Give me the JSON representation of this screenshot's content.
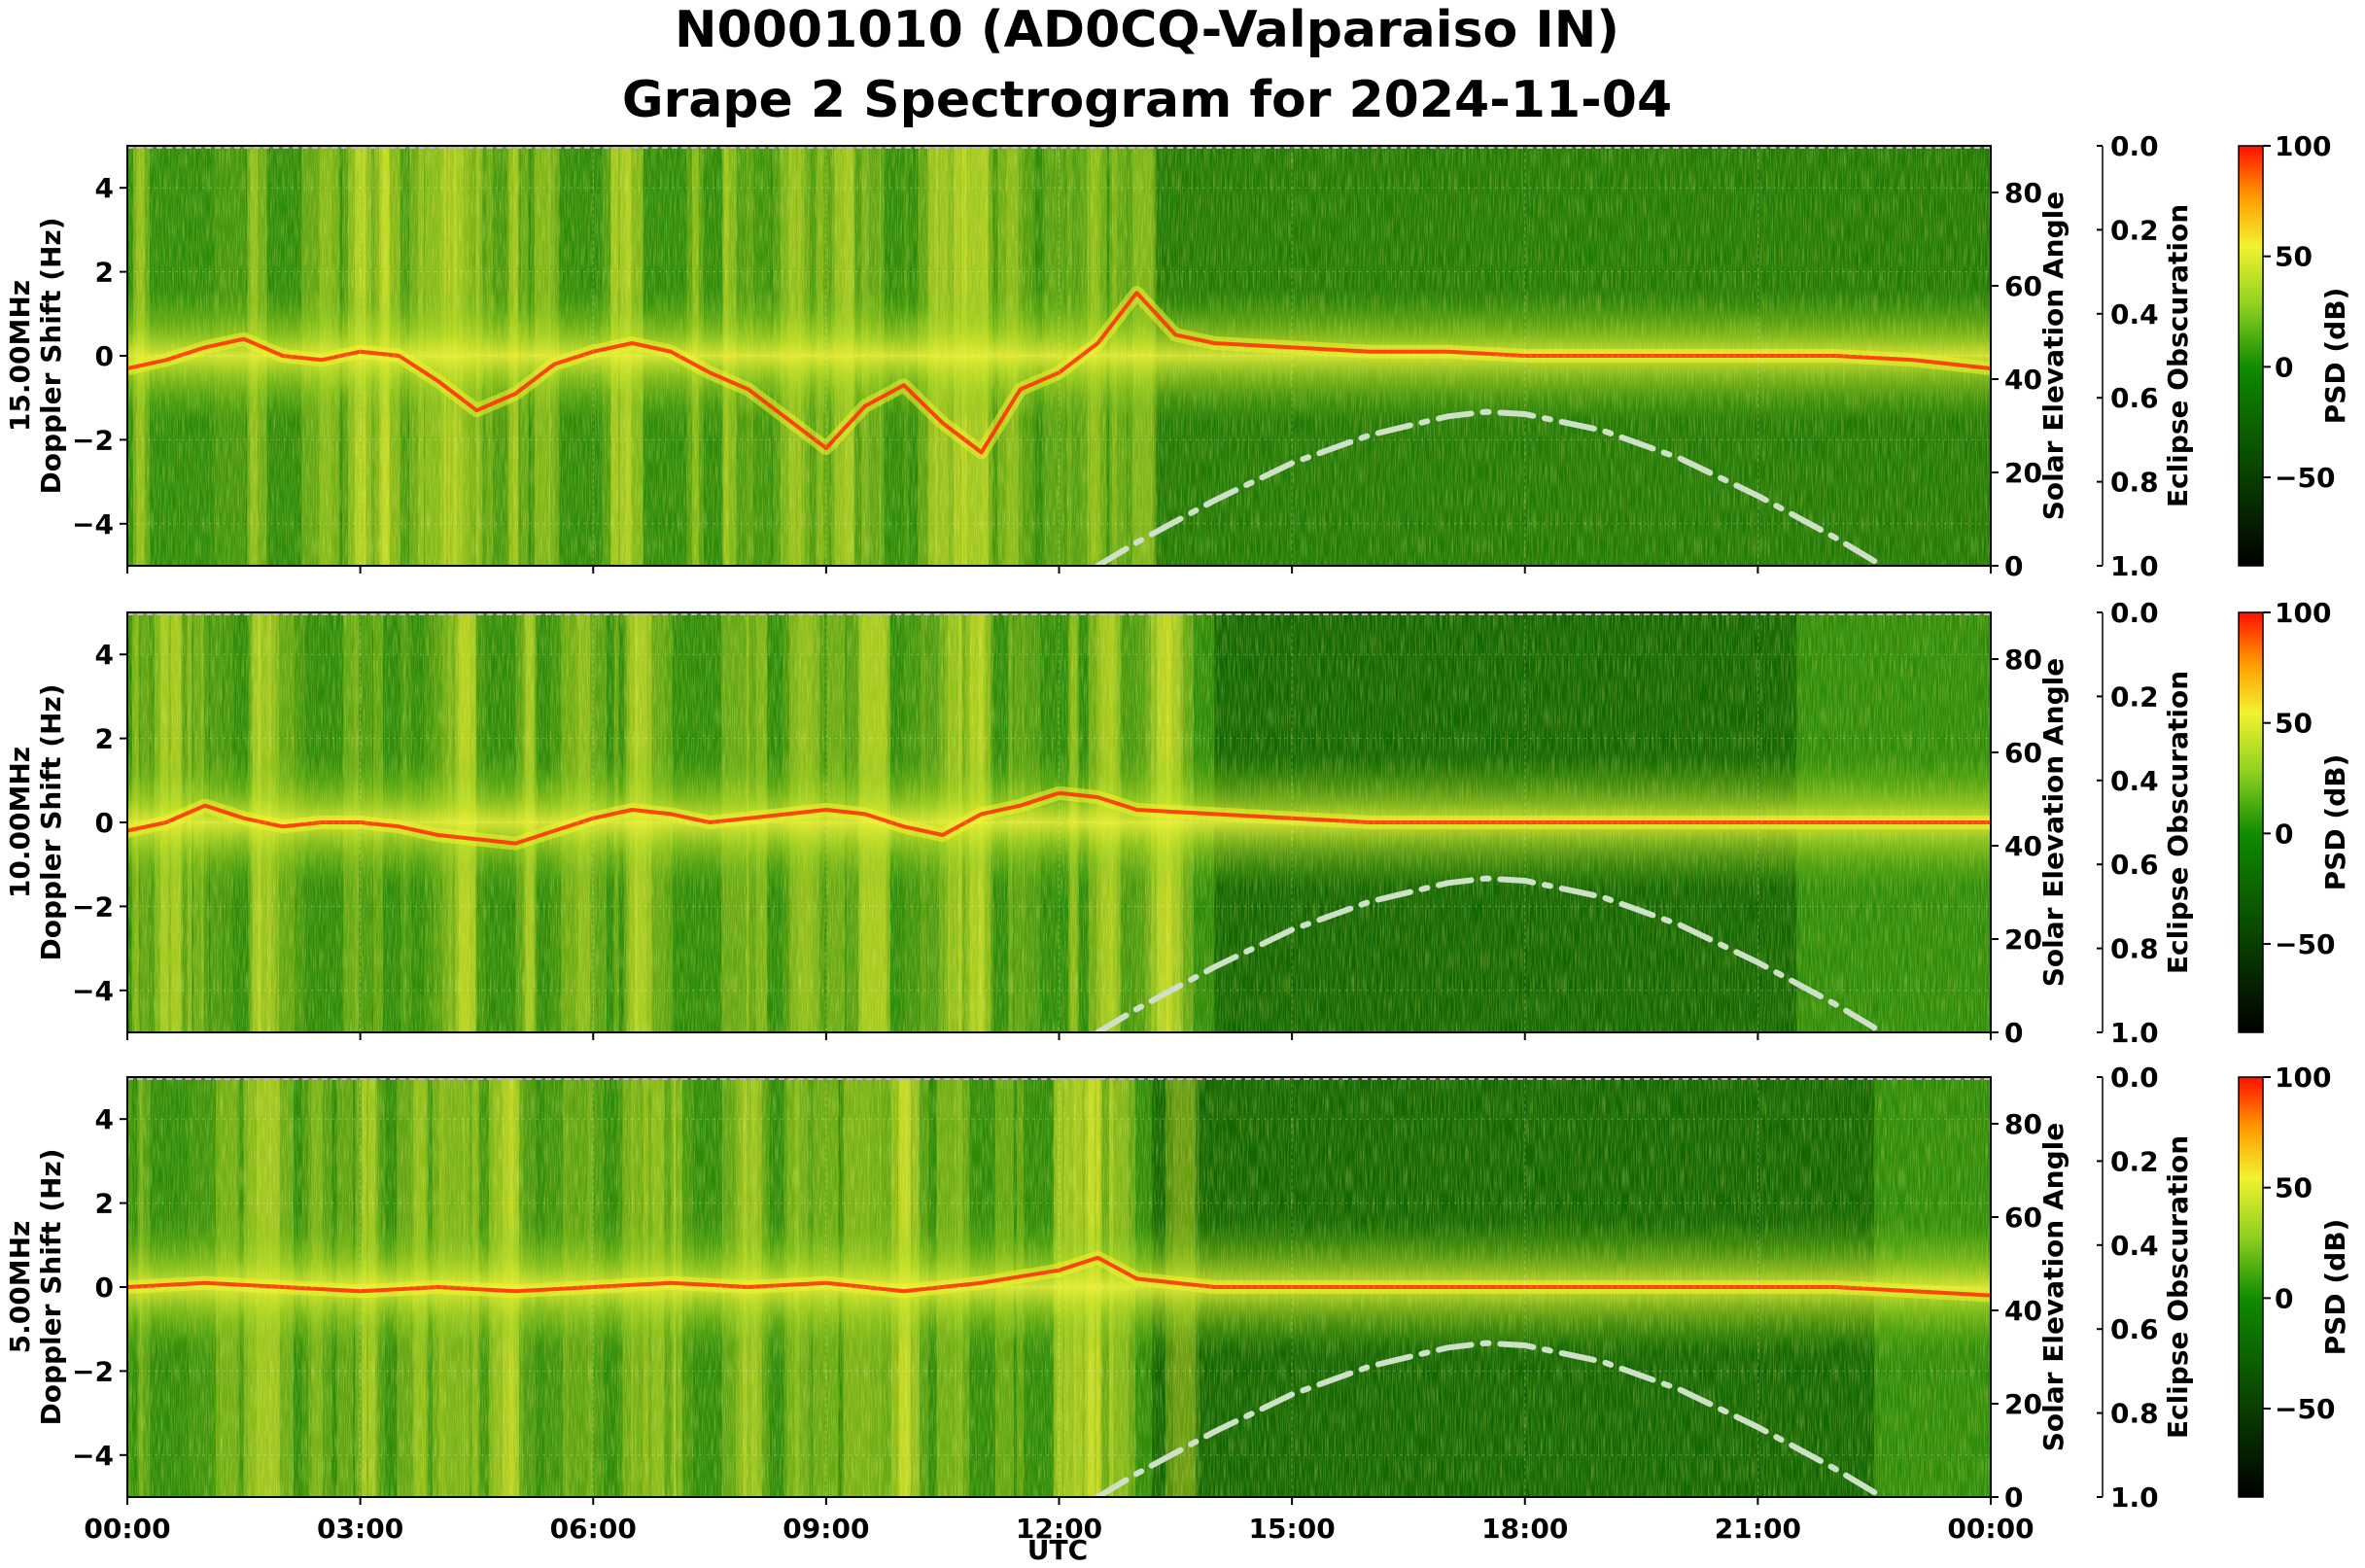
{
  "title_line1": "N0001010 (AD0CQ-Valparaiso IN)",
  "title_line2": "Grape 2 Spectrogram for 2024-11-04",
  "xlabel": "UTC",
  "x_ticks": [
    "00:00",
    "03:00",
    "06:00",
    "09:00",
    "12:00",
    "15:00",
    "18:00",
    "21:00",
    "00:00"
  ],
  "colors": {
    "background_green": "#2e8b0a",
    "dark_green": "#0a5a00",
    "yellow": "#f2f230",
    "red": "#ff2a00",
    "solar_curve": "#cfe0c8"
  },
  "chart_data": [
    {
      "type": "heatmap",
      "panel_label": "15.00MHz",
      "ylabel": "Doppler Shift (Hz)",
      "y_ticks": [
        4,
        2,
        0,
        -2,
        -4
      ],
      "ylim": [
        -5,
        5
      ],
      "xlim_hours": [
        0,
        24
      ],
      "secondary_ylabel": "Solar Elevation Angle",
      "secondary_ticks": [
        0,
        20,
        40,
        60,
        80
      ],
      "secondary_ylim": [
        0,
        90
      ],
      "eclipse_label": "Eclipse Obscuration",
      "eclipse_ticks": [
        "0.0",
        "0.2",
        "0.4",
        "0.6",
        "0.8",
        "1.0"
      ],
      "colorbar_label": "PSD (dB)",
      "colorbar_ticks": [
        100,
        50,
        0,
        -50
      ],
      "colorbar_range": [
        -90,
        100
      ],
      "doppler_trace": {
        "x_hours": [
          0,
          0.5,
          1.0,
          1.5,
          2.0,
          2.5,
          3.0,
          3.5,
          4.0,
          4.5,
          5.0,
          5.5,
          6.0,
          6.5,
          7.0,
          7.5,
          8.0,
          8.5,
          9.0,
          9.5,
          10.0,
          10.5,
          11.0,
          11.5,
          12.0,
          12.5,
          13.0,
          13.5,
          14.0,
          15.0,
          16.0,
          17.0,
          18.0,
          19.0,
          20.0,
          21.0,
          22.0,
          23.0,
          24.0
        ],
        "y_hz": [
          -0.3,
          -0.1,
          0.2,
          0.4,
          0.0,
          -0.1,
          0.1,
          0.0,
          -0.6,
          -1.3,
          -0.9,
          -0.2,
          0.1,
          0.3,
          0.1,
          -0.4,
          -0.8,
          -1.5,
          -2.2,
          -1.2,
          -0.7,
          -1.6,
          -2.3,
          -0.8,
          -0.4,
          0.3,
          1.5,
          0.5,
          0.3,
          0.2,
          0.1,
          0.1,
          0.0,
          0.0,
          0.0,
          0.0,
          0.0,
          -0.1,
          -0.3
        ]
      },
      "solar_elevation": {
        "x_hours": [
          12.5,
          13,
          14,
          15,
          16,
          17,
          17.5,
          18,
          19,
          20,
          21,
          22,
          22.6
        ],
        "deg": [
          0,
          5,
          14,
          22,
          28,
          32,
          33,
          32.5,
          29,
          23,
          15,
          6,
          0
        ]
      }
    },
    {
      "type": "heatmap",
      "panel_label": "10.00MHz",
      "ylabel": "Doppler Shift (Hz)",
      "y_ticks": [
        4,
        2,
        0,
        -2,
        -4
      ],
      "ylim": [
        -5,
        5
      ],
      "xlim_hours": [
        0,
        24
      ],
      "secondary_ylabel": "Solar Elevation Angle",
      "secondary_ticks": [
        0,
        20,
        40,
        60,
        80
      ],
      "secondary_ylim": [
        0,
        90
      ],
      "eclipse_label": "Eclipse Obscuration",
      "eclipse_ticks": [
        "0.0",
        "0.2",
        "0.4",
        "0.6",
        "0.8",
        "1.0"
      ],
      "colorbar_label": "PSD (dB)",
      "colorbar_ticks": [
        100,
        50,
        0,
        -50
      ],
      "colorbar_range": [
        -90,
        100
      ],
      "doppler_trace": {
        "x_hours": [
          0,
          0.5,
          1.0,
          1.5,
          2.0,
          2.5,
          3.0,
          3.5,
          4.0,
          4.5,
          5.0,
          5.5,
          6.0,
          6.5,
          7.0,
          7.5,
          8.0,
          8.5,
          9.0,
          9.5,
          10.0,
          10.5,
          11.0,
          11.5,
          12.0,
          12.5,
          13.0,
          14.0,
          15.0,
          16.0,
          17.0,
          18.0,
          19.0,
          20.0,
          21.0,
          22.0,
          23.0,
          24.0
        ],
        "y_hz": [
          -0.2,
          0.0,
          0.4,
          0.1,
          -0.1,
          0.0,
          0.0,
          -0.1,
          -0.3,
          -0.4,
          -0.5,
          -0.2,
          0.1,
          0.3,
          0.2,
          0.0,
          0.1,
          0.2,
          0.3,
          0.2,
          -0.1,
          -0.3,
          0.2,
          0.4,
          0.7,
          0.6,
          0.3,
          0.2,
          0.1,
          0.0,
          0.0,
          0.0,
          0.0,
          0.0,
          0.0,
          0.0,
          0.0,
          0.0
        ]
      },
      "solar_elevation": {
        "x_hours": [
          12.5,
          13,
          14,
          15,
          16,
          17,
          17.5,
          18,
          19,
          20,
          21,
          22,
          22.6
        ],
        "deg": [
          0,
          5,
          14,
          22,
          28,
          32,
          33,
          32.5,
          29,
          23,
          15,
          6,
          0
        ]
      }
    },
    {
      "type": "heatmap",
      "panel_label": "5.00MHz",
      "ylabel": "Doppler Shift (Hz)",
      "y_ticks": [
        4,
        2,
        0,
        -2,
        -4
      ],
      "ylim": [
        -5,
        5
      ],
      "xlim_hours": [
        0,
        24
      ],
      "secondary_ylabel": "Solar Elevation Angle",
      "secondary_ticks": [
        0,
        20,
        40,
        60,
        80
      ],
      "secondary_ylim": [
        0,
        90
      ],
      "eclipse_label": "Eclipse Obscuration",
      "eclipse_ticks": [
        "0.0",
        "0.2",
        "0.4",
        "0.6",
        "0.8",
        "1.0"
      ],
      "colorbar_label": "PSD (dB)",
      "colorbar_ticks": [
        100,
        50,
        0,
        -50
      ],
      "colorbar_range": [
        -90,
        100
      ],
      "doppler_trace": {
        "x_hours": [
          0,
          1,
          2,
          3,
          4,
          5,
          6,
          7,
          8,
          9,
          10,
          11,
          12,
          12.5,
          13,
          14,
          15,
          16,
          17,
          18,
          19,
          20,
          21,
          22,
          23,
          24
        ],
        "y_hz": [
          0.0,
          0.1,
          0.0,
          -0.1,
          0.0,
          -0.1,
          0.0,
          0.1,
          0.0,
          0.1,
          -0.1,
          0.1,
          0.4,
          0.7,
          0.2,
          0.0,
          0.0,
          0.0,
          0.0,
          0.0,
          0.0,
          0.0,
          0.0,
          0.0,
          -0.1,
          -0.2
        ]
      },
      "solar_elevation": {
        "x_hours": [
          12.5,
          13,
          14,
          15,
          16,
          17,
          17.5,
          18,
          19,
          20,
          21,
          22,
          22.6
        ],
        "deg": [
          0,
          5,
          14,
          22,
          28,
          32,
          33,
          32.5,
          29,
          23,
          15,
          6,
          0
        ]
      }
    }
  ]
}
